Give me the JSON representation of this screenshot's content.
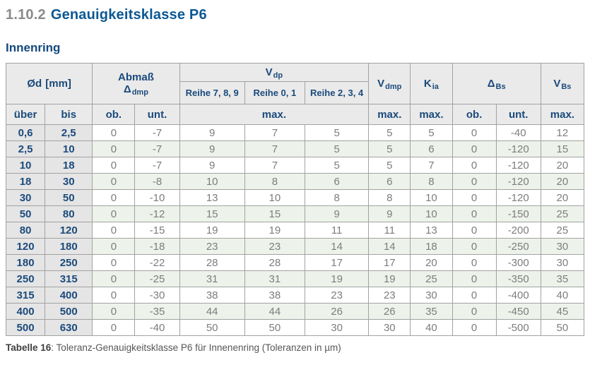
{
  "page": {
    "title": {
      "number": "1.10.2",
      "text": "Genauigkeitsklasse P6"
    },
    "subtitle": "Innenring",
    "caption": {
      "label": "Tabelle 16",
      "text": ": Toleranz-Genauigkeitsklasse P6 für Innenenring (Toleranzen in µm)"
    }
  },
  "colors": {
    "title_number_gray": "#8a8a8a",
    "title_blue": "#0b5894",
    "heading_blue": "#14497d",
    "header_text_blue": "#1b4a7c",
    "header_bg": "#eaeaea",
    "label_col_bg": "#e5e5e5",
    "row_green": "#edf3ea",
    "row_white": "#ffffff",
    "data_text_gray": "#7d7d7d",
    "border_gray": "#a2a2a2"
  },
  "table": {
    "header": {
      "od": {
        "main": "Ød",
        "unit": "[mm]"
      },
      "abmass": {
        "line1": "Abmaß",
        "sym": "Δ",
        "sub": "dmp"
      },
      "vdp": {
        "main": "V",
        "sub": "dp"
      },
      "vdmp": {
        "main": "V",
        "sub": "dmp"
      },
      "kia": {
        "main": "K",
        "sub": "ia"
      },
      "dbs": {
        "sym": "Δ",
        "sub": "Bs"
      },
      "vbs": {
        "main": "V",
        "sub": "Bs"
      },
      "reihe": [
        "Reihe 7, 8, 9",
        "Reihe 0, 1",
        "Reihe 2, 3, 4"
      ]
    },
    "subheader": {
      "ueber": "über",
      "bis": "bis",
      "ob": "ob.",
      "unt": "unt.",
      "max": "max."
    },
    "rows": [
      [
        "0,6",
        "2,5",
        "0",
        "-7",
        "9",
        "7",
        "5",
        "5",
        "5",
        "0",
        "-40",
        "12"
      ],
      [
        "2,5",
        "10",
        "0",
        "-7",
        "9",
        "7",
        "5",
        "5",
        "6",
        "0",
        "-120",
        "15"
      ],
      [
        "10",
        "18",
        "0",
        "-7",
        "9",
        "7",
        "5",
        "5",
        "7",
        "0",
        "-120",
        "20"
      ],
      [
        "18",
        "30",
        "0",
        "-8",
        "10",
        "8",
        "6",
        "6",
        "8",
        "0",
        "-120",
        "20"
      ],
      [
        "30",
        "50",
        "0",
        "-10",
        "13",
        "10",
        "8",
        "8",
        "10",
        "0",
        "-120",
        "20"
      ],
      [
        "50",
        "80",
        "0",
        "-12",
        "15",
        "15",
        "9",
        "9",
        "10",
        "0",
        "-150",
        "25"
      ],
      [
        "80",
        "120",
        "0",
        "-15",
        "19",
        "19",
        "11",
        "11",
        "13",
        "0",
        "-200",
        "25"
      ],
      [
        "120",
        "180",
        "0",
        "-18",
        "23",
        "23",
        "14",
        "14",
        "18",
        "0",
        "-250",
        "30"
      ],
      [
        "180",
        "250",
        "0",
        "-22",
        "28",
        "28",
        "17",
        "17",
        "20",
        "0",
        "-300",
        "30"
      ],
      [
        "250",
        "315",
        "0",
        "-25",
        "31",
        "31",
        "19",
        "19",
        "25",
        "0",
        "-350",
        "35"
      ],
      [
        "315",
        "400",
        "0",
        "-30",
        "38",
        "38",
        "23",
        "23",
        "30",
        "0",
        "-400",
        "40"
      ],
      [
        "400",
        "500",
        "0",
        "-35",
        "44",
        "44",
        "26",
        "26",
        "35",
        "0",
        "-450",
        "45"
      ],
      [
        "500",
        "630",
        "0",
        "-40",
        "50",
        "50",
        "30",
        "30",
        "40",
        "0",
        "-500",
        "50"
      ]
    ]
  }
}
